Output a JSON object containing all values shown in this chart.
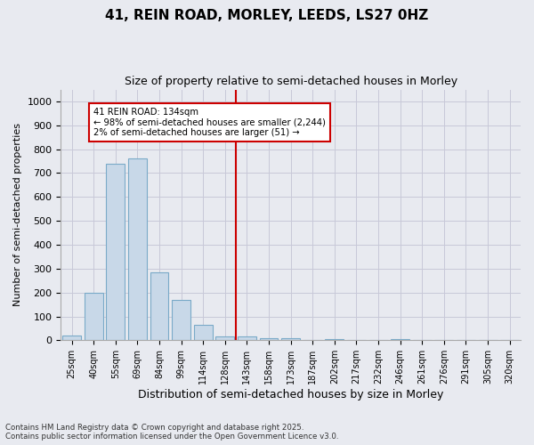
{
  "title_line1": "41, REIN ROAD, MORLEY, LEEDS, LS27 0HZ",
  "title_line2": "Size of property relative to semi-detached houses in Morley",
  "xlabel": "Distribution of semi-detached houses by size in Morley",
  "ylabel": "Number of semi-detached properties",
  "footer_line1": "Contains HM Land Registry data © Crown copyright and database right 2025.",
  "footer_line2": "Contains public sector information licensed under the Open Government Licence v3.0.",
  "categories": [
    "25sqm",
    "40sqm",
    "55sqm",
    "69sqm",
    "84sqm",
    "99sqm",
    "114sqm",
    "128sqm",
    "143sqm",
    "158sqm",
    "173sqm",
    "187sqm",
    "202sqm",
    "217sqm",
    "232sqm",
    "246sqm",
    "261sqm",
    "276sqm",
    "291sqm",
    "305sqm",
    "320sqm"
  ],
  "values": [
    20,
    200,
    740,
    760,
    285,
    170,
    65,
    18,
    15,
    10,
    10,
    0,
    5,
    0,
    0,
    5,
    0,
    0,
    0,
    0,
    0
  ],
  "bar_color": "#c8d8e8",
  "bar_edge_color": "#7aaac8",
  "vline_x_index": 7,
  "vline_color": "#cc0000",
  "annotation_title": "41 REIN ROAD: 134sqm",
  "annotation_line2": "← 98% of semi-detached houses are smaller (2,244)",
  "annotation_line3": "2% of semi-detached houses are larger (51) →",
  "annotation_box_color": "#cc0000",
  "annotation_bg_color": "#ffffff",
  "ylim": [
    0,
    1050
  ],
  "yticks": [
    0,
    100,
    200,
    300,
    400,
    500,
    600,
    700,
    800,
    900,
    1000
  ],
  "grid_color": "#c8c8d8",
  "bg_color": "#e8eaf0",
  "plot_bg_color": "#e8eaf0"
}
